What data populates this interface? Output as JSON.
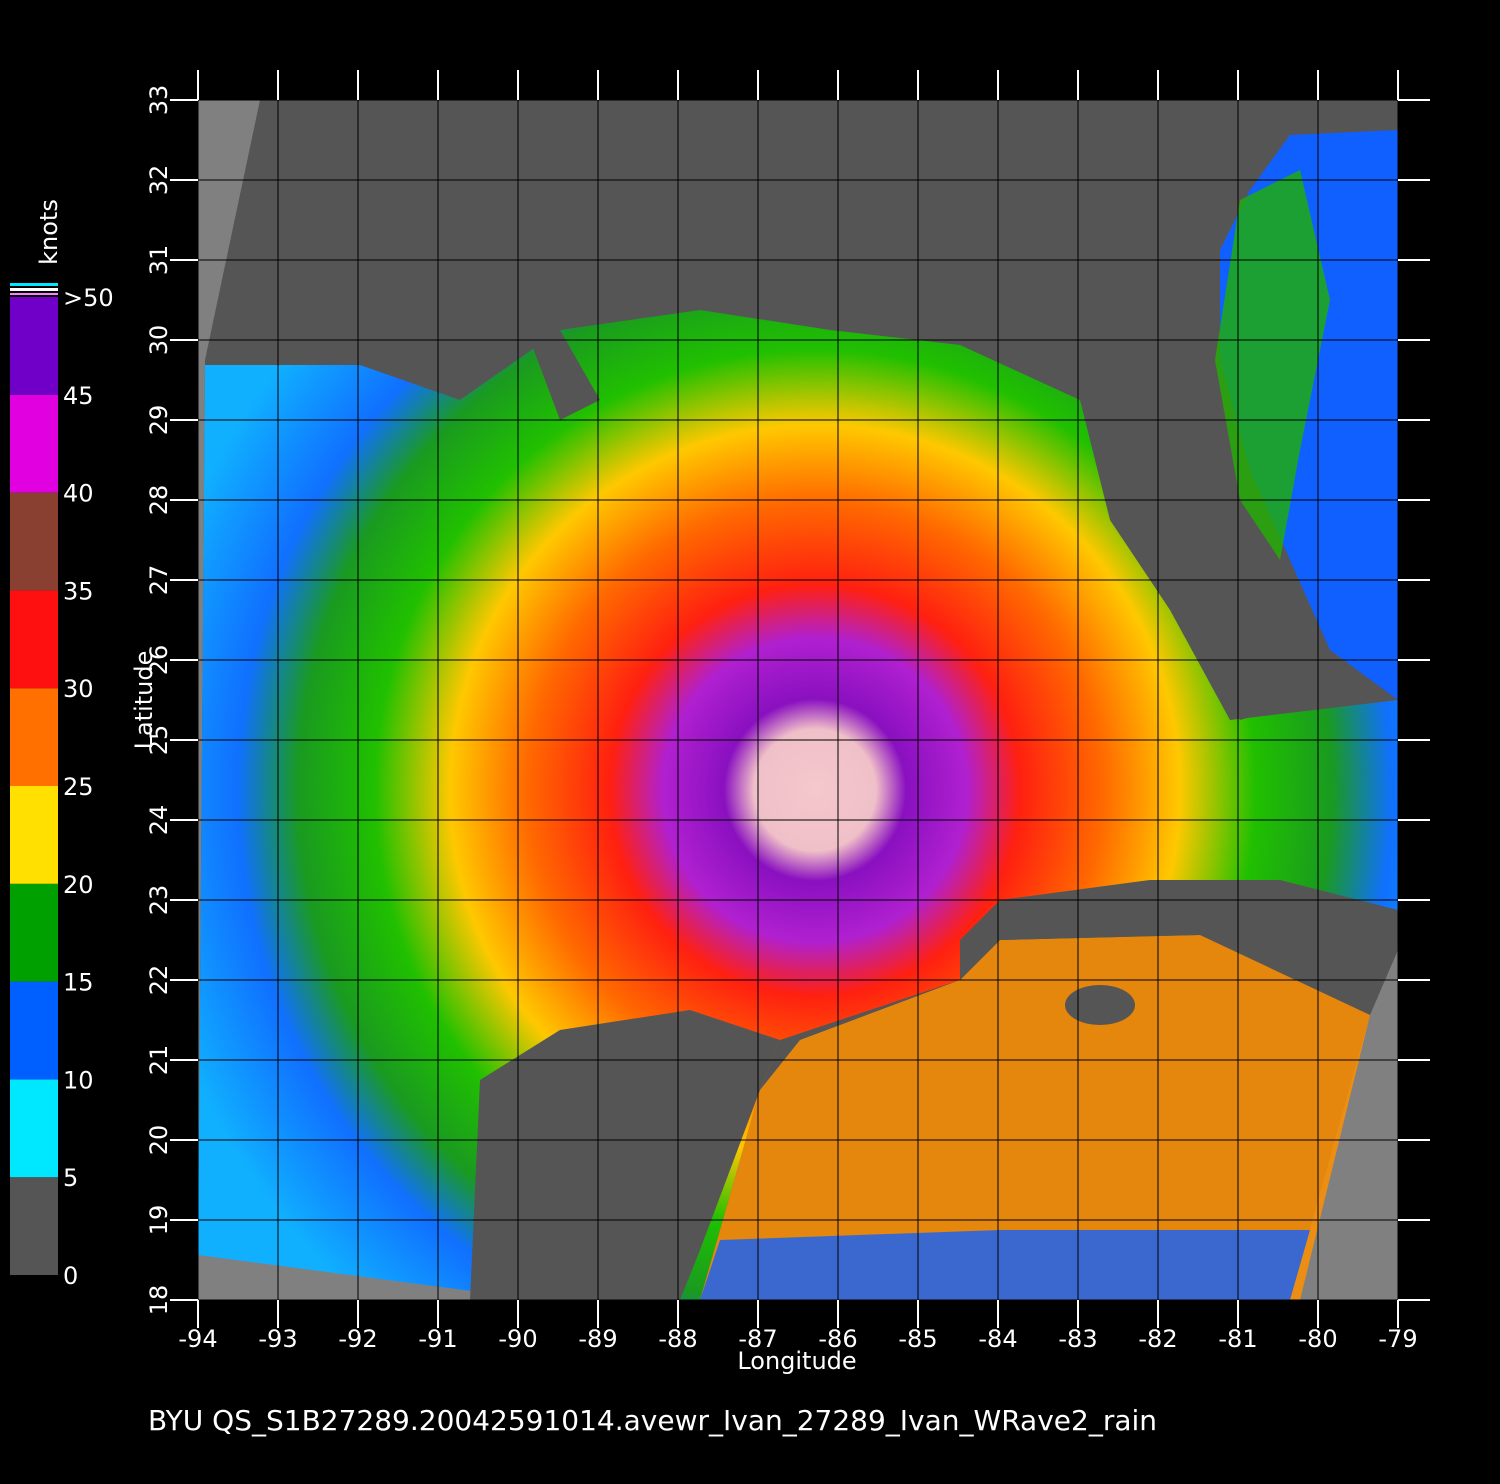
{
  "chart_data": {
    "type": "map",
    "title": "BYU  QS_S1B27289.20042591014.avewr_Ivan_27289_Ivan_WRave2_rain",
    "xlabel": "Longitude",
    "ylabel": "Latitude",
    "xlim": [
      -94,
      -79
    ],
    "ylim": [
      18,
      33
    ],
    "xticks": [
      -94,
      -93,
      -92,
      -91,
      -90,
      -89,
      -88,
      -87,
      -86,
      -85,
      -84,
      -83,
      -82,
      -81,
      -80,
      -79
    ],
    "yticks": [
      18,
      19,
      20,
      21,
      22,
      23,
      24,
      25,
      26,
      27,
      28,
      29,
      30,
      31,
      32,
      33
    ],
    "grid": true,
    "colorbar": {
      "label": "knots",
      "lim": [
        0,
        50
      ],
      "ticks": [
        0,
        5,
        10,
        15,
        20,
        25,
        30,
        35,
        40,
        45,
        {
          "value": 50,
          "label": ">50"
        }
      ],
      "colors": [
        "#555555",
        "#00e8ff",
        "#0060ff",
        "#00a000",
        "#ffe000",
        "#ff7000",
        "#ff1010",
        "#8a4030",
        "#e000e0",
        "#7000c8"
      ]
    }
  }
}
